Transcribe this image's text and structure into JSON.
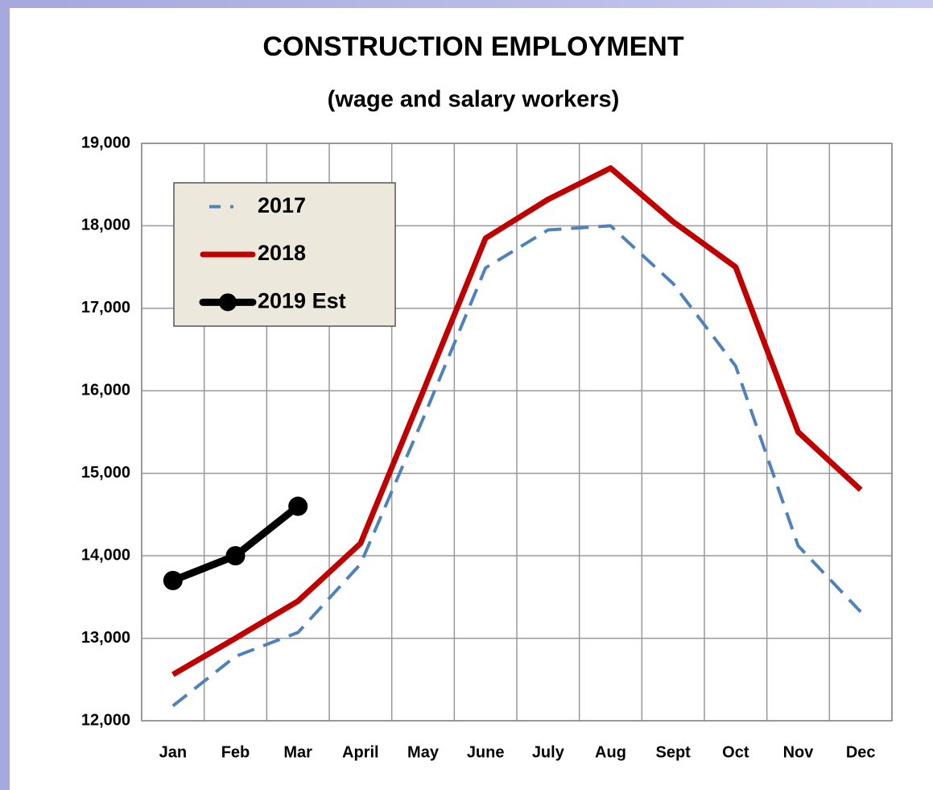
{
  "chart_data": {
    "type": "line",
    "title": "CONSTRUCTION EMPLOYMENT",
    "subtitle": "(wage and salary workers)",
    "categories": [
      "Jan",
      "Feb",
      "Mar",
      "April",
      "May",
      "June",
      "July",
      "Aug",
      "Sept",
      "Oct",
      "Nov",
      "Dec"
    ],
    "series": [
      {
        "name": "2017",
        "color": "#4f81bd",
        "dashed": true,
        "values": [
          12180,
          12780,
          13070,
          13900,
          15660,
          17490,
          17950,
          18000,
          17300,
          16300,
          14120,
          13320
        ]
      },
      {
        "name": "2018",
        "color": "#c00000",
        "values": [
          12560,
          13000,
          13450,
          14150,
          15990,
          17850,
          18320,
          18700,
          18050,
          17500,
          15500,
          14800
        ]
      },
      {
        "name": "2019 Est",
        "color": "#000000",
        "markers": true,
        "values": [
          13700,
          14000,
          14600,
          null,
          null,
          null,
          null,
          null,
          null,
          null,
          null,
          null
        ]
      }
    ],
    "ylim": [
      12000,
      19000
    ],
    "yticks": [
      {
        "value": 12000,
        "label": "12,000"
      },
      {
        "value": 13000,
        "label": "13,000"
      },
      {
        "value": 14000,
        "label": "14,000"
      },
      {
        "value": 15000,
        "label": "15,000"
      },
      {
        "value": 16000,
        "label": "16,000"
      },
      {
        "value": 17000,
        "label": "17,000"
      },
      {
        "value": 18000,
        "label": "18,000"
      },
      {
        "value": 19000,
        "label": "19,000"
      }
    ],
    "grid": true,
    "legend": "upper left"
  }
}
